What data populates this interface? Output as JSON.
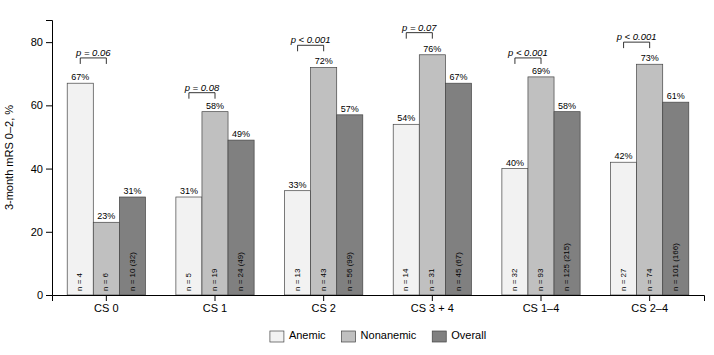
{
  "chart_data": {
    "type": "bar",
    "ylabel": "3-month mRS 0–2, %",
    "categories": [
      "CS 0",
      "CS 1",
      "CS 2",
      "CS 3 + 4",
      "CS 1–4",
      "CS 2–4"
    ],
    "series": [
      {
        "name": "Anemic",
        "color": "#f2f2f2",
        "values": [
          67,
          31,
          33,
          54,
          40,
          42
        ],
        "value_labels": [
          "67%",
          "31%",
          "33%",
          "54%",
          "40%",
          "42%"
        ],
        "n_labels": [
          "n = 4",
          "n = 5",
          "n = 13",
          "n = 14",
          "n = 32",
          "n = 27"
        ]
      },
      {
        "name": "Nonanemic",
        "color": "#c0c0c0",
        "values": [
          23,
          58,
          72,
          76,
          69,
          73
        ],
        "value_labels": [
          "23%",
          "58%",
          "72%",
          "76%",
          "69%",
          "73%"
        ],
        "n_labels": [
          "n = 6",
          "n = 19",
          "n = 43",
          "n = 31",
          "n = 93",
          "n = 74"
        ]
      },
      {
        "name": "Overall",
        "color": "#808080",
        "values": [
          31,
          49,
          57,
          67,
          58,
          61
        ],
        "value_labels": [
          "31%",
          "49%",
          "57%",
          "67%",
          "58%",
          "61%"
        ],
        "n_labels": [
          "n = 10 (32)",
          "n = 24 (49)",
          "n = 56 (99)",
          "n = 45 (67)",
          "n = 125 (215)",
          "n = 101 (166)"
        ]
      }
    ],
    "p_values": [
      "p = 0.06",
      "p = 0.08",
      "p < 0.001",
      "p = 0.07",
      "p < 0.001",
      "p < 0.001"
    ],
    "p_value_heights": [
      75,
      64,
      79,
      83,
      75,
      80
    ],
    "ylim": [
      0,
      87
    ],
    "yticks": [
      0,
      20,
      40,
      60,
      80
    ],
    "grid": false,
    "legend": "bottom",
    "data_labels": true
  }
}
